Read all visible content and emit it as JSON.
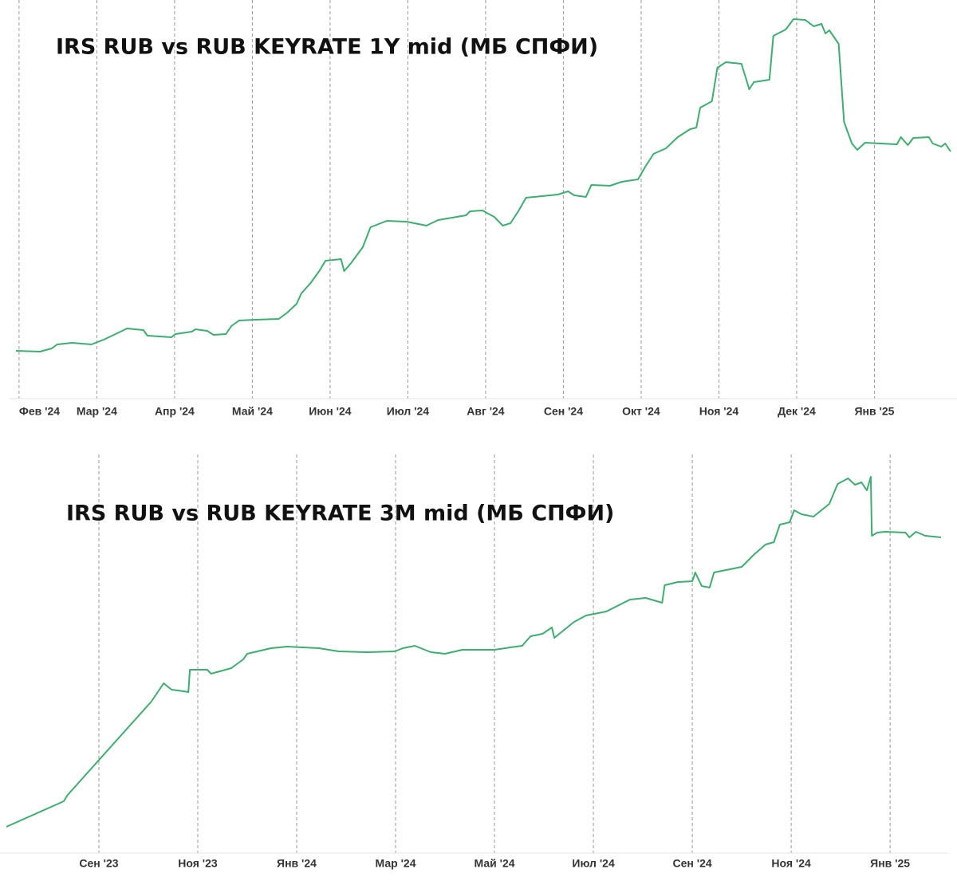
{
  "chart_data": [
    {
      "type": "line",
      "title": "IRS RUB vs RUB KEYRATE 1Y mid (МБ СПФИ)",
      "x": [
        -0.04,
        0.27,
        0.42,
        0.49,
        0.68,
        0.93,
        1.09,
        1.24,
        1.39,
        1.6,
        1.65,
        1.96,
        2.01,
        2.22,
        2.27,
        2.42,
        2.5,
        2.66,
        2.73,
        2.83,
        3.04,
        3.34,
        3.45,
        3.57,
        3.63,
        3.75,
        3.86,
        3.94,
        4.14,
        4.18,
        4.27,
        4.42,
        4.52,
        4.73,
        4.98,
        5.24,
        5.39,
        5.75,
        5.8,
        5.96,
        6.11,
        6.22,
        6.32,
        6.42,
        6.52,
        6.93,
        7.06,
        7.14,
        7.29,
        7.36,
        7.6,
        7.75,
        7.96,
        8.06,
        8.16,
        8.32,
        8.47,
        8.63,
        8.71,
        8.76,
        8.91,
        8.98,
        9.09,
        9.29,
        9.39,
        9.45,
        9.65,
        9.7,
        9.86,
        9.96,
        10.11,
        10.22,
        10.32,
        10.37,
        10.42,
        10.54,
        10.61,
        10.71,
        10.78,
        10.88,
        11.29,
        11.34,
        11.43,
        11.5,
        11.7,
        11.75,
        11.86,
        11.91,
        11.98
      ],
      "series": [
        {
          "color": "#3dae6f",
          "values": [
            60,
            59,
            63,
            68,
            70,
            68,
            74,
            81,
            88,
            86,
            79,
            77,
            81,
            84,
            87,
            85,
            80,
            81,
            91,
            98,
            99,
            100,
            108,
            119,
            132,
            145,
            160,
            173,
            175,
            160,
            170,
            190,
            215,
            223,
            222,
            217,
            224,
            230,
            235,
            236,
            228,
            217,
            220,
            235,
            252,
            256,
            260,
            255,
            253,
            268,
            267,
            272,
            275,
            292,
            307,
            314,
            328,
            338,
            340,
            365,
            373,
            415,
            422,
            420,
            388,
            397,
            400,
            455,
            463,
            476,
            475,
            467,
            470,
            458,
            462,
            445,
            347,
            320,
            312,
            321,
            319,
            328,
            318,
            327,
            328,
            320,
            316,
            320,
            310
          ]
        }
      ],
      "xlim": [
        -0.04,
        11.98
      ],
      "ylim": [
        0,
        480
      ],
      "xticks": [
        {
          "value": 0,
          "label": "Фев '24"
        },
        {
          "value": 1,
          "label": "Мар '24"
        },
        {
          "value": 2,
          "label": "Апр '24"
        },
        {
          "value": 3,
          "label": "Май '24"
        },
        {
          "value": 4,
          "label": "Июн '24"
        },
        {
          "value": 5,
          "label": "Июл '24"
        },
        {
          "value": 6,
          "label": "Авг '24"
        },
        {
          "value": 7,
          "label": "Сен '24"
        },
        {
          "value": 8,
          "label": "Окт '24"
        },
        {
          "value": 9,
          "label": "Ноя '24"
        },
        {
          "value": 10,
          "label": "Дек '24"
        },
        {
          "value": 11,
          "label": "Янв '25"
        }
      ],
      "grid": true
    },
    {
      "type": "line",
      "title": "IRS RUB vs RUB KEYRATE 3M mid (МБ СПФИ)",
      "x": [
        -1.87,
        -0.71,
        -0.63,
        1.06,
        1.31,
        1.47,
        1.71,
        1.81,
        1.84,
        2.19,
        2.27,
        2.68,
        2.92,
        3.0,
        3.48,
        3.81,
        4.45,
        4.85,
        5.42,
        5.98,
        6.15,
        6.39,
        6.71,
        7.0,
        7.35,
        8.0,
        8.32,
        8.56,
        8.73,
        8.97,
        9.16,
        9.21,
        9.61,
        9.85,
        10.26,
        10.74,
        11.06,
        11.39,
        11.44,
        11.71,
        12.0,
        12.06,
        12.19,
        12.35,
        12.44,
        12.68,
        13.0,
        13.24,
        13.48,
        13.65,
        13.77,
        13.97,
        14.06,
        14.21,
        14.45,
        14.77,
        14.94,
        15.15,
        15.29,
        15.42,
        15.53,
        15.61,
        15.63,
        15.74,
        15.9,
        16.31,
        16.39,
        16.52,
        16.71,
        17.03
      ],
      "series": [
        {
          "color": "#3dae6f",
          "values": [
            33,
            65,
            73,
            190,
            213,
            205,
            203,
            202,
            230,
            230,
            225,
            232,
            243,
            250,
            257,
            259,
            257,
            253,
            252,
            253,
            257,
            260,
            252,
            250,
            255,
            255,
            258,
            260,
            272,
            275,
            283,
            270,
            290,
            298,
            303,
            318,
            320,
            314,
            336,
            340,
            341,
            352,
            335,
            333,
            352,
            355,
            359,
            374,
            387,
            390,
            412,
            415,
            430,
            425,
            422,
            438,
            463,
            470,
            462,
            465,
            455,
            472,
            398,
            402,
            403,
            402,
            396,
            403,
            398,
            396
          ]
        }
      ],
      "xlim": [
        -1.87,
        17.03
      ],
      "ylim": [
        0,
        500
      ],
      "xticks": [
        {
          "value": 0,
          "label": "Сен '23"
        },
        {
          "value": 2,
          "label": "Ноя '23"
        },
        {
          "value": 4,
          "label": "Янв '24"
        },
        {
          "value": 6,
          "label": "Мар '24"
        },
        {
          "value": 8,
          "label": "Май '24"
        },
        {
          "value": 10,
          "label": "Июл '24"
        },
        {
          "value": 12,
          "label": "Сен '24"
        },
        {
          "value": 14,
          "label": "Ноя '24"
        },
        {
          "value": 16,
          "label": "Янв '25"
        }
      ],
      "grid": true
    }
  ]
}
